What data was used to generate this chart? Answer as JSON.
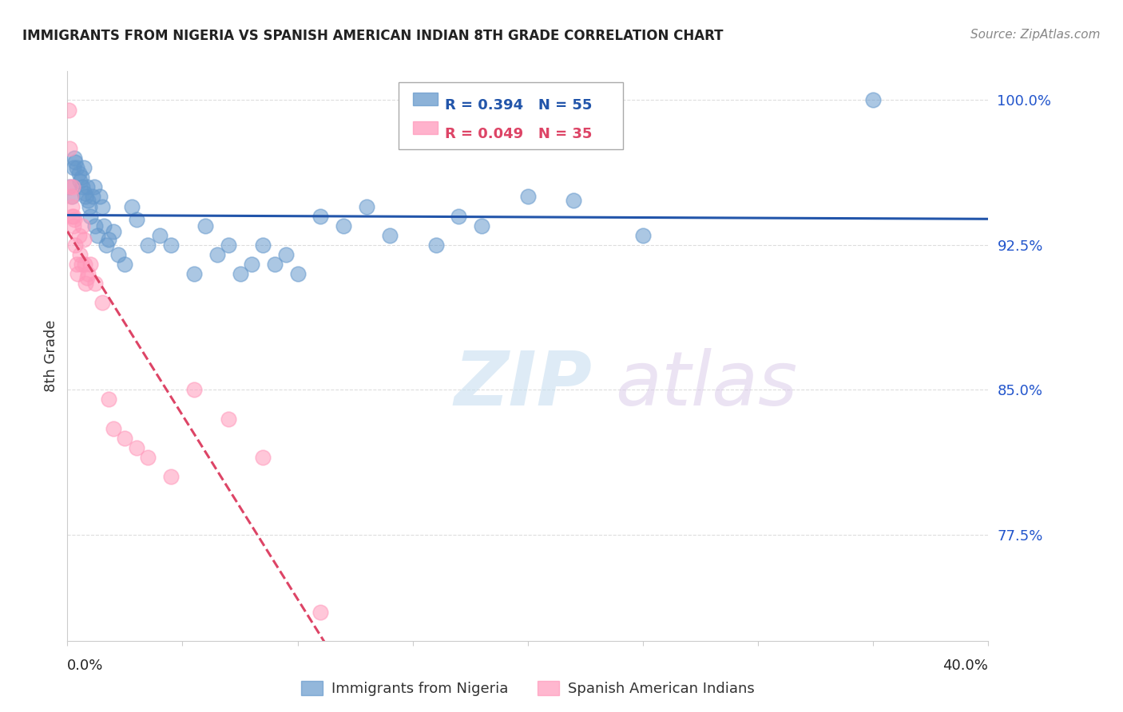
{
  "title": "IMMIGRANTS FROM NIGERIA VS SPANISH AMERICAN INDIAN 8TH GRADE CORRELATION CHART",
  "source": "Source: ZipAtlas.com",
  "ylabel": "8th Grade",
  "xmin": 0.0,
  "xmax": 40.0,
  "ymin": 72.0,
  "ymax": 101.5,
  "yticks": [
    77.5,
    85.0,
    92.5,
    100.0
  ],
  "r_nigeria": 0.394,
  "n_nigeria": 55,
  "r_spanish": 0.049,
  "n_spanish": 35,
  "color_nigeria": "#6699CC",
  "color_spanish": "#FF99BB",
  "color_nigeria_line": "#2255AA",
  "color_spanish_line": "#DD4466",
  "legend_nigeria": "Immigrants from Nigeria",
  "legend_spanish": "Spanish American Indians",
  "watermark_zip": "ZIP",
  "watermark_atlas": "atlas",
  "nigeria_x": [
    0.1,
    0.2,
    0.25,
    0.3,
    0.35,
    0.4,
    0.5,
    0.55,
    0.6,
    0.65,
    0.7,
    0.75,
    0.8,
    0.85,
    0.9,
    0.95,
    1.0,
    1.1,
    1.15,
    1.2,
    1.3,
    1.4,
    1.5,
    1.6,
    1.7,
    1.8,
    2.0,
    2.2,
    2.5,
    2.8,
    3.0,
    3.5,
    4.0,
    4.5,
    5.5,
    6.0,
    6.5,
    7.0,
    7.5,
    8.0,
    8.5,
    9.0,
    9.5,
    10.0,
    11.0,
    12.0,
    13.0,
    14.0,
    16.0,
    17.0,
    18.0,
    20.0,
    22.0,
    25.0,
    35.0
  ],
  "nigeria_y": [
    95.5,
    95.0,
    96.5,
    97.0,
    96.8,
    96.5,
    96.2,
    95.8,
    96.0,
    95.5,
    96.5,
    95.2,
    95.0,
    95.5,
    94.8,
    94.5,
    94.0,
    95.0,
    95.5,
    93.5,
    93.0,
    95.0,
    94.5,
    93.5,
    92.5,
    92.8,
    93.2,
    92.0,
    91.5,
    94.5,
    93.8,
    92.5,
    93.0,
    92.5,
    91.0,
    93.5,
    92.0,
    92.5,
    91.0,
    91.5,
    92.5,
    91.5,
    92.0,
    91.0,
    94.0,
    93.5,
    94.5,
    93.0,
    92.5,
    94.0,
    93.5,
    95.0,
    94.8,
    93.0,
    100.0
  ],
  "spanish_x": [
    0.05,
    0.1,
    0.12,
    0.15,
    0.18,
    0.2,
    0.22,
    0.25,
    0.28,
    0.3,
    0.35,
    0.4,
    0.45,
    0.5,
    0.55,
    0.6,
    0.65,
    0.7,
    0.75,
    0.8,
    0.85,
    0.9,
    1.0,
    1.2,
    1.5,
    1.8,
    2.0,
    2.5,
    3.0,
    3.5,
    4.5,
    5.5,
    7.0,
    8.5,
    11.0
  ],
  "spanish_y": [
    99.5,
    97.5,
    95.5,
    95.0,
    94.5,
    94.0,
    95.5,
    94.0,
    93.5,
    93.8,
    92.5,
    91.5,
    91.0,
    93.0,
    92.0,
    91.5,
    93.5,
    92.8,
    91.5,
    90.5,
    90.8,
    91.0,
    91.5,
    90.5,
    89.5,
    84.5,
    83.0,
    82.5,
    82.0,
    81.5,
    80.5,
    85.0,
    83.5,
    81.5,
    73.5
  ]
}
